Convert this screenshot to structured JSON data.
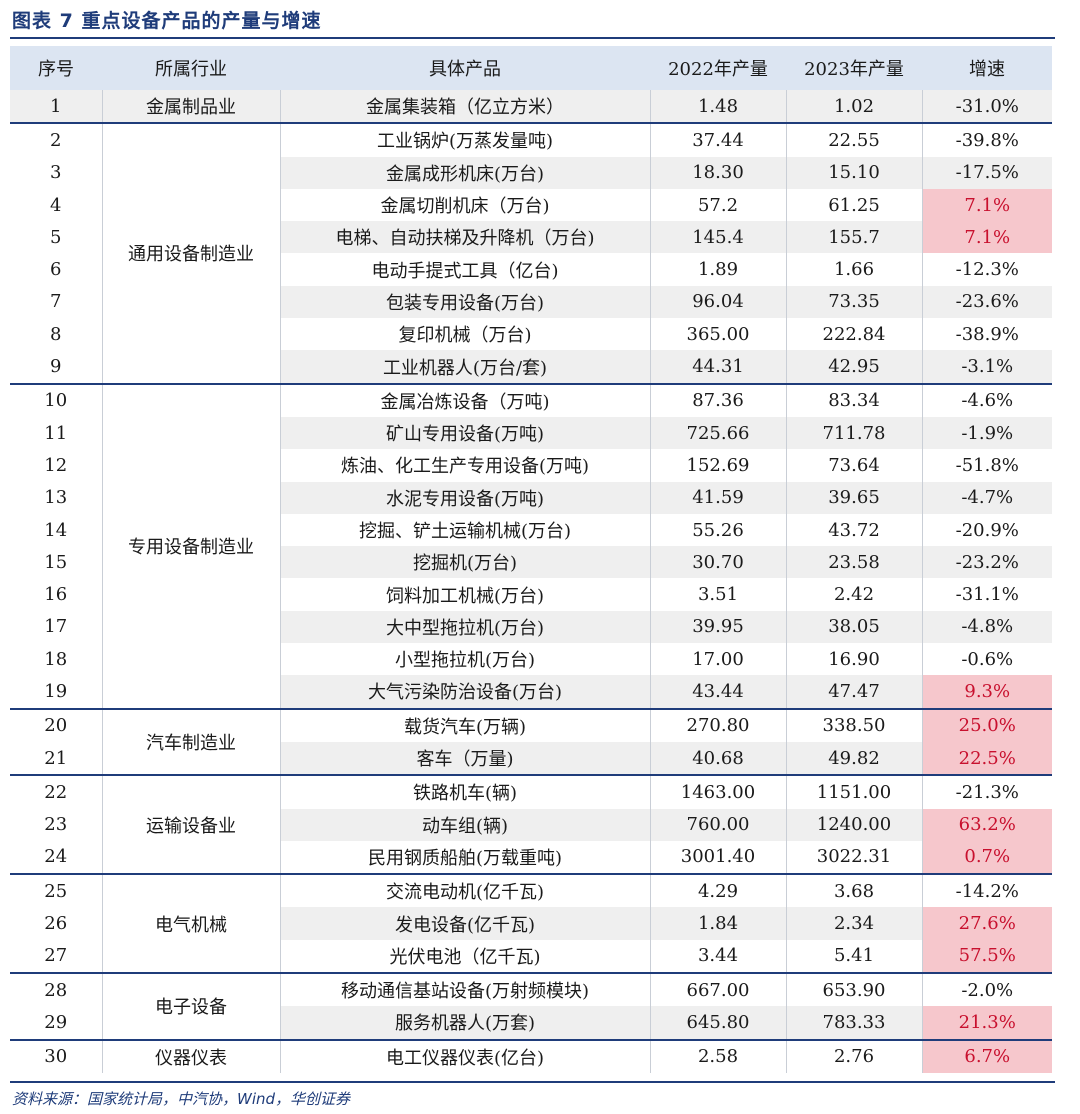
{
  "title": "图表 7    重点设备产品的产量与增速",
  "source": "资料来源：国家统计局，中汽协，Wind，华创证券",
  "colors": {
    "accent": "#1f3c7a",
    "header_bg": "#dce5f2",
    "highlight_bg": "#f6c7cc",
    "highlight_text": "#c8102e"
  },
  "headers": [
    "序号",
    "所属行业",
    "具体产品",
    "2022年产量",
    "2023年产量",
    "增速"
  ],
  "groups": [
    {
      "industry": "金属制品业",
      "rows": [
        {
          "no": "1",
          "product": "金属集装箱（亿立方米）",
          "y2022": "1.48",
          "y2023": "1.02",
          "growth": "-31.0%",
          "highlight": false
        }
      ]
    },
    {
      "industry": "通用设备制造业",
      "rows": [
        {
          "no": "2",
          "product": "工业锅炉(万蒸发量吨)",
          "y2022": "37.44",
          "y2023": "22.55",
          "growth": "-39.8%",
          "highlight": false
        },
        {
          "no": "3",
          "product": "金属成形机床(万台)",
          "y2022": "18.30",
          "y2023": "15.10",
          "growth": "-17.5%",
          "highlight": false
        },
        {
          "no": "4",
          "product": "金属切削机床（万台)",
          "y2022": "57.2",
          "y2023": "61.25",
          "growth": "7.1%",
          "highlight": true
        },
        {
          "no": "5",
          "product": "电梯、自动扶梯及升降机（万台)",
          "y2022": "145.4",
          "y2023": "155.7",
          "growth": "7.1%",
          "highlight": true
        },
        {
          "no": "6",
          "product": "电动手提式工具（亿台)",
          "y2022": "1.89",
          "y2023": "1.66",
          "growth": "-12.3%",
          "highlight": false
        },
        {
          "no": "7",
          "product": "包装专用设备(万台)",
          "y2022": "96.04",
          "y2023": "73.35",
          "growth": "-23.6%",
          "highlight": false
        },
        {
          "no": "8",
          "product": "复印机械（万台)",
          "y2022": "365.00",
          "y2023": "222.84",
          "growth": "-38.9%",
          "highlight": false
        },
        {
          "no": "9",
          "product": "工业机器人(万台/套)",
          "y2022": "44.31",
          "y2023": "42.95",
          "growth": "-3.1%",
          "highlight": false
        }
      ]
    },
    {
      "industry": "专用设备制造业",
      "rows": [
        {
          "no": "10",
          "product": "金属冶炼设备（万吨)",
          "y2022": "87.36",
          "y2023": "83.34",
          "growth": "-4.6%",
          "highlight": false
        },
        {
          "no": "11",
          "product": "矿山专用设备(万吨)",
          "y2022": "725.66",
          "y2023": "711.78",
          "growth": "-1.9%",
          "highlight": false
        },
        {
          "no": "12",
          "product": "炼油、化工生产专用设备(万吨)",
          "y2022": "152.69",
          "y2023": "73.64",
          "growth": "-51.8%",
          "highlight": false
        },
        {
          "no": "13",
          "product": "水泥专用设备(万吨)",
          "y2022": "41.59",
          "y2023": "39.65",
          "growth": "-4.7%",
          "highlight": false
        },
        {
          "no": "14",
          "product": "挖掘、铲土运输机械(万台)",
          "y2022": "55.26",
          "y2023": "43.72",
          "growth": "-20.9%",
          "highlight": false
        },
        {
          "no": "15",
          "product": "挖掘机(万台)",
          "y2022": "30.70",
          "y2023": "23.58",
          "growth": "-23.2%",
          "highlight": false
        },
        {
          "no": "16",
          "product": "饲料加工机械(万台)",
          "y2022": "3.51",
          "y2023": "2.42",
          "growth": "-31.1%",
          "highlight": false
        },
        {
          "no": "17",
          "product": "大中型拖拉机(万台)",
          "y2022": "39.95",
          "y2023": "38.05",
          "growth": "-4.8%",
          "highlight": false
        },
        {
          "no": "18",
          "product": "小型拖拉机(万台)",
          "y2022": "17.00",
          "y2023": "16.90",
          "growth": "-0.6%",
          "highlight": false
        },
        {
          "no": "19",
          "product": "大气污染防治设备(万台)",
          "y2022": "43.44",
          "y2023": "47.47",
          "growth": "9.3%",
          "highlight": true
        }
      ]
    },
    {
      "industry": "汽车制造业",
      "rows": [
        {
          "no": "20",
          "product": "载货汽车(万辆)",
          "y2022": "270.80",
          "y2023": "338.50",
          "growth": "25.0%",
          "highlight": true
        },
        {
          "no": "21",
          "product": "客车（万量)",
          "y2022": "40.68",
          "y2023": "49.82",
          "growth": "22.5%",
          "highlight": true
        }
      ]
    },
    {
      "industry": "运输设备业",
      "rows": [
        {
          "no": "22",
          "product": "铁路机车(辆)",
          "y2022": "1463.00",
          "y2023": "1151.00",
          "growth": "-21.3%",
          "highlight": false
        },
        {
          "no": "23",
          "product": "动车组(辆)",
          "y2022": "760.00",
          "y2023": "1240.00",
          "growth": "63.2%",
          "highlight": true
        },
        {
          "no": "24",
          "product": "民用钢质船舶(万载重吨)",
          "y2022": "3001.40",
          "y2023": "3022.31",
          "growth": "0.7%",
          "highlight": true
        }
      ]
    },
    {
      "industry": "电气机械",
      "rows": [
        {
          "no": "25",
          "product": "交流电动机(亿千瓦)",
          "y2022": "4.29",
          "y2023": "3.68",
          "growth": "-14.2%",
          "highlight": false
        },
        {
          "no": "26",
          "product": "发电设备(亿千瓦)",
          "y2022": "1.84",
          "y2023": "2.34",
          "growth": "27.6%",
          "highlight": true
        },
        {
          "no": "27",
          "product": "光伏电池（亿千瓦)",
          "y2022": "3.44",
          "y2023": "5.41",
          "growth": "57.5%",
          "highlight": true
        }
      ]
    },
    {
      "industry": "电子设备",
      "rows": [
        {
          "no": "28",
          "product": "移动通信基站设备(万射频模块)",
          "y2022": "667.00",
          "y2023": "653.90",
          "growth": "-2.0%",
          "highlight": false
        },
        {
          "no": "29",
          "product": "服务机器人(万套)",
          "y2022": "645.80",
          "y2023": "783.33",
          "growth": "21.3%",
          "highlight": true
        }
      ]
    },
    {
      "industry": "仪器仪表",
      "rows": [
        {
          "no": "30",
          "product": "电工仪器仪表(亿台)",
          "y2022": "2.58",
          "y2023": "2.76",
          "growth": "6.7%",
          "highlight": true
        }
      ]
    }
  ]
}
